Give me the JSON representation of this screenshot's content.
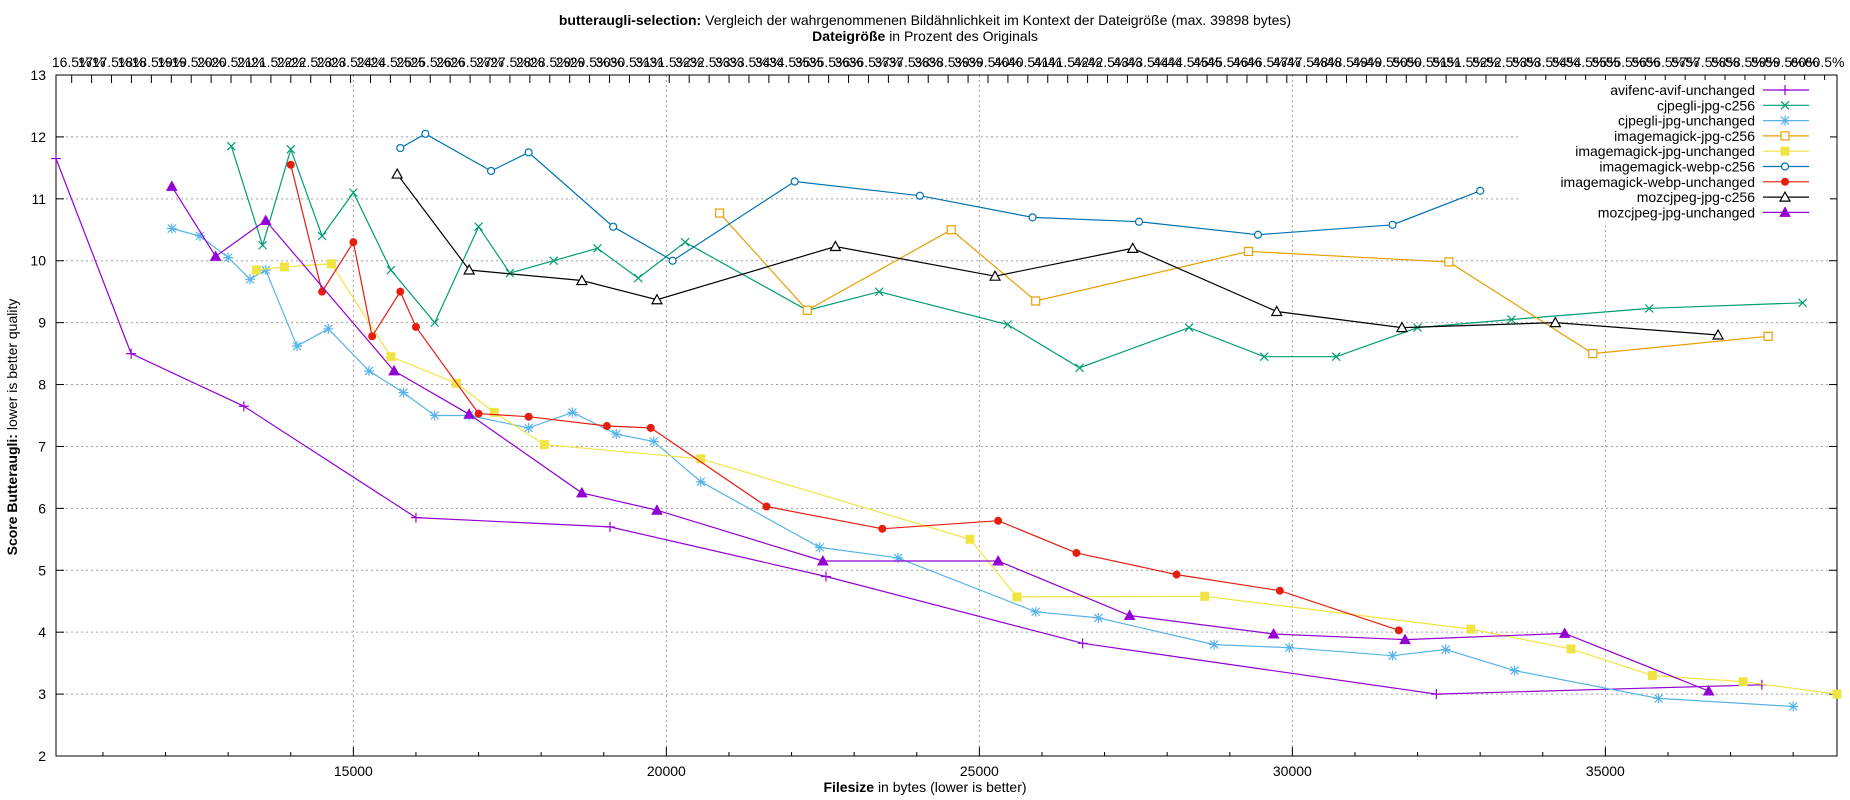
{
  "title": {
    "bold": "butteraugli-selection:",
    "rest": "Vergleich der wahrgenommenen Bildähnlichkeit im Kontext der Dateigröße (max. 39898 bytes)"
  },
  "x2label": {
    "bold": "Dateigröße",
    "rest": "in Prozent des Originals"
  },
  "ylabel": {
    "bold": "Score Butteraugli:",
    "rest": "lower is better quality"
  },
  "xlabel": {
    "bold": "Filesize",
    "rest": "in bytes (lower is better)"
  },
  "chart_data": {
    "type": "line",
    "x_ticks": [
      "15000",
      "20000",
      "25000",
      "30000",
      "35000"
    ],
    "x_tick_values": [
      15000,
      20000,
      25000,
      30000,
      35000
    ],
    "y_ticks": [
      "2",
      "3",
      "4",
      "5",
      "6",
      "7",
      "8",
      "9",
      "10",
      "11",
      "12",
      "13"
    ],
    "y_tick_values": [
      2,
      3,
      4,
      5,
      6,
      7,
      8,
      9,
      10,
      11,
      12,
      13
    ],
    "x2_tick_labels": [
      "16.5%",
      "17%",
      "17.5%",
      "18%",
      "18.5%",
      "19%",
      "19.5%",
      "20%",
      "20.5%",
      "21%",
      "21.5%",
      "22%",
      "22.5%",
      "23%",
      "23.5%",
      "24%",
      "24.5%",
      "25%",
      "25.5%",
      "26%",
      "26.5%",
      "27%",
      "27.5%",
      "28%",
      "28.5%",
      "29%",
      "29.5%",
      "30%",
      "30.5%",
      "31%",
      "31.5%",
      "32%",
      "32.5%",
      "33%",
      "33.5%",
      "34%",
      "34.5%",
      "35%",
      "35.5%",
      "36%",
      "36.5%",
      "37%",
      "37.5%",
      "38%",
      "38.5%",
      "39%",
      "39.5%",
      "40%",
      "40.5%",
      "41%",
      "41.5%",
      "42%",
      "42.5%",
      "43%",
      "43.5%",
      "44%",
      "44.5%",
      "45%",
      "45.5%",
      "46%",
      "46.5%",
      "47%",
      "47.5%",
      "48%",
      "48.5%",
      "49%",
      "49.5%",
      "50%",
      "50.5%",
      "51%",
      "51.5%",
      "52%",
      "52.5%",
      "53%",
      "53.5%",
      "54%",
      "54.5%",
      "55%",
      "55.5%",
      "56%",
      "56.5%",
      "57%",
      "57.5%",
      "58%",
      "58.5%",
      "59%",
      "59.5%",
      "60%",
      "60.5%"
    ],
    "x2_tick_values": [
      16.5,
      17,
      17.5,
      18,
      18.5,
      19,
      19.5,
      20,
      20.5,
      21,
      21.5,
      22,
      22.5,
      23,
      23.5,
      24,
      24.5,
      25,
      25.5,
      26,
      26.5,
      27,
      27.5,
      28,
      28.5,
      29,
      29.5,
      30,
      30.5,
      31,
      31.5,
      32,
      32.5,
      33,
      33.5,
      34,
      34.5,
      35,
      35.5,
      36,
      36.5,
      37,
      37.5,
      38,
      38.5,
      39,
      39.5,
      40,
      40.5,
      41,
      41.5,
      42,
      42.5,
      43,
      43.5,
      44,
      44.5,
      45,
      45.5,
      46,
      46.5,
      47,
      47.5,
      48,
      48.5,
      49,
      49.5,
      50,
      50.5,
      51,
      51.5,
      52,
      52.5,
      53,
      53.5,
      54,
      54.5,
      55,
      55.5,
      56,
      56.5,
      57,
      57.5,
      58,
      58.5,
      59,
      59.5,
      60,
      60.5
    ],
    "x2_reference_bytes": 63640,
    "xlim": [
      10250,
      38700
    ],
    "ylim": [
      2,
      13
    ],
    "grid": true,
    "legend_position": "top-right",
    "series": [
      {
        "name": "avifenc-avif-unchanged",
        "color": "#9400d3",
        "marker": "plus",
        "x": [
          10250,
          11450,
          13250,
          16000,
          19100,
          22550,
          26650,
          32300,
          37500
        ],
        "y": [
          11.65,
          8.5,
          7.65,
          5.85,
          5.7,
          4.9,
          3.82,
          3.0,
          3.15
        ]
      },
      {
        "name": "cjpegli-jpg-c256",
        "color": "#009e73",
        "marker": "x",
        "x": [
          13050,
          13550,
          14000,
          14500,
          15000,
          15600,
          16300,
          17000,
          17500,
          18200,
          18900,
          19550,
          20300,
          22250,
          23400,
          25450,
          26600,
          28350,
          29550,
          30700,
          32000,
          33500,
          35700,
          38150
        ],
        "y": [
          11.85,
          10.25,
          11.8,
          10.4,
          11.1,
          9.85,
          9.0,
          10.55,
          9.8,
          10.0,
          10.2,
          9.72,
          10.3,
          9.2,
          9.5,
          8.97,
          8.27,
          8.92,
          8.45,
          8.45,
          8.92,
          9.05,
          9.23,
          9.32
        ]
      },
      {
        "name": "cjpegli-jpg-unchanged",
        "color": "#56b4e9",
        "marker": "star",
        "x": [
          12100,
          12550,
          13000,
          13350,
          13600,
          14100,
          14600,
          15250,
          15800,
          16300,
          16850,
          17800,
          18500,
          19200,
          19800,
          20550,
          22450,
          23700,
          25900,
          26900,
          28750,
          29950,
          31600,
          32450,
          33550,
          35850,
          38000
        ],
        "y": [
          10.52,
          10.4,
          10.05,
          9.7,
          9.85,
          8.62,
          8.9,
          8.22,
          7.87,
          7.5,
          7.5,
          7.3,
          7.55,
          7.2,
          7.08,
          6.43,
          5.37,
          5.2,
          4.33,
          4.23,
          3.8,
          3.75,
          3.62,
          3.72,
          3.38,
          2.93,
          2.8
        ]
      },
      {
        "name": "imagemagick-jpg-c256",
        "color": "#e69f00",
        "marker": "square",
        "x": [
          20850,
          22250,
          24550,
          25900,
          29300,
          32500,
          34800,
          37600
        ],
        "y": [
          10.77,
          9.2,
          10.5,
          9.35,
          10.15,
          9.98,
          8.5,
          8.78
        ]
      },
      {
        "name": "imagemagick-jpg-unchanged",
        "color": "#f0e442",
        "marker": "filled-square",
        "x": [
          13450,
          13900,
          14650,
          15600,
          16650,
          17250,
          18050,
          20550,
          24850,
          25600,
          28600,
          32850,
          34450,
          35750,
          37200,
          38700
        ],
        "y": [
          9.85,
          9.9,
          9.95,
          8.45,
          8.02,
          7.55,
          7.03,
          6.8,
          5.5,
          4.57,
          4.58,
          4.05,
          3.73,
          3.3,
          3.2,
          3.0
        ]
      },
      {
        "name": "imagemagick-webp-c256",
        "color": "#0072b2",
        "marker": "circle",
        "x": [
          15750,
          16150,
          17200,
          17800,
          19150,
          20100,
          22050,
          24050,
          25850,
          27550,
          29450,
          31600,
          33000
        ],
        "y": [
          11.82,
          12.05,
          11.45,
          11.75,
          10.55,
          10.0,
          11.28,
          11.05,
          10.7,
          10.63,
          10.42,
          10.58,
          11.13
        ]
      },
      {
        "name": "imagemagick-webp-unchanged",
        "color": "#e51e10",
        "marker": "filled-circle",
        "x": [
          14000,
          14500,
          15000,
          15300,
          15750,
          16000,
          17000,
          17800,
          19050,
          19750,
          21600,
          23450,
          25300,
          26550,
          28150,
          29800,
          31700
        ],
        "y": [
          11.55,
          9.5,
          10.3,
          8.78,
          9.5,
          8.93,
          7.53,
          7.48,
          7.33,
          7.3,
          6.03,
          5.67,
          5.8,
          5.28,
          4.93,
          4.67,
          4.03
        ]
      },
      {
        "name": "mozcjpeg-jpg-c256",
        "color": "#000000",
        "marker": "triangle",
        "x": [
          15700,
          16850,
          18650,
          19850,
          22700,
          25250,
          27450,
          29750,
          31750,
          34200,
          36800
        ],
        "y": [
          11.4,
          9.85,
          9.68,
          9.37,
          10.23,
          9.75,
          10.2,
          9.18,
          8.92,
          9.0,
          8.8
        ]
      },
      {
        "name": "mozcjpeg-jpg-unchanged",
        "color": "#9400d3",
        "marker": "filled-triangle",
        "x": [
          12100,
          12800,
          13600,
          15650,
          16850,
          18650,
          19850,
          22500,
          25300,
          27400,
          29700,
          31800,
          34350,
          36650
        ],
        "y": [
          11.2,
          10.07,
          10.65,
          8.22,
          7.52,
          6.25,
          5.97,
          5.15,
          5.15,
          4.27,
          3.97,
          3.88,
          3.98,
          3.05
        ]
      }
    ]
  }
}
